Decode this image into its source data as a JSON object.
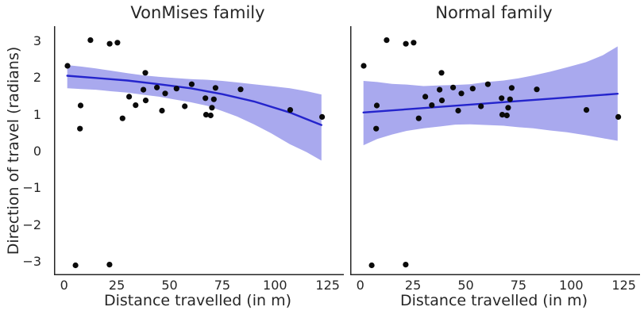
{
  "figure": {
    "background": "#ffffff",
    "text_color": "#262626",
    "spine_color": "#262626",
    "scatter_color": "#0a0a0a",
    "line_color": "#2424cc",
    "band_color": "#a9a9ee"
  },
  "chart_data": [
    {
      "type": "scatter",
      "title": "VonMises family",
      "xlabel": "Distance travelled (in m)",
      "ylabel": "Direction of travel (radians)",
      "xlim": [
        -4.8,
        131.5
      ],
      "ylim": [
        -3.37,
        3.41
      ],
      "xticks": [
        0,
        25,
        50,
        75,
        100,
        125
      ],
      "yticks": [
        3,
        2,
        1,
        0,
        -1,
        -2,
        -3
      ],
      "grid": false,
      "legend": "none",
      "points": [
        [
          1.6,
          2.33
        ],
        [
          5.4,
          -3.1
        ],
        [
          7.5,
          0.62
        ],
        [
          7.8,
          1.25
        ],
        [
          12.5,
          3.03
        ],
        [
          21.5,
          -3.08
        ],
        [
          21.6,
          2.93
        ],
        [
          25.3,
          2.96
        ],
        [
          27.7,
          0.9
        ],
        [
          30.8,
          1.49
        ],
        [
          33.9,
          1.26
        ],
        [
          37.6,
          1.68
        ],
        [
          38.5,
          2.14
        ],
        [
          38.7,
          1.39
        ],
        [
          44.0,
          1.74
        ],
        [
          46.4,
          1.11
        ],
        [
          47.9,
          1.58
        ],
        [
          53.3,
          1.71
        ],
        [
          57.2,
          1.23
        ],
        [
          60.5,
          1.83
        ],
        [
          67.0,
          1.45
        ],
        [
          67.3,
          1.0
        ],
        [
          69.5,
          0.98
        ],
        [
          70.1,
          1.19
        ],
        [
          71.0,
          1.42
        ],
        [
          71.8,
          1.73
        ],
        [
          83.7,
          1.69
        ],
        [
          107.2,
          1.13
        ],
        [
          122.3,
          0.94
        ]
      ],
      "regression_line": {
        "x": [
          1.5,
          15,
          30,
          45,
          60,
          75,
          90,
          107,
          122
        ],
        "y": [
          2.06,
          2.0,
          1.93,
          1.83,
          1.72,
          1.56,
          1.36,
          1.06,
          0.72
        ]
      },
      "confidence_band": {
        "x": [
          1.5,
          8,
          15,
          22,
          30,
          38,
          45,
          52,
          60,
          68,
          75,
          82,
          90,
          98,
          107,
          115,
          122
        ],
        "top": [
          2.35,
          2.31,
          2.26,
          2.2,
          2.13,
          2.07,
          2.03,
          2.0,
          1.97,
          1.95,
          1.92,
          1.88,
          1.83,
          1.78,
          1.72,
          1.64,
          1.55
        ],
        "bottom": [
          1.72,
          1.7,
          1.68,
          1.64,
          1.6,
          1.54,
          1.49,
          1.42,
          1.34,
          1.24,
          1.1,
          0.95,
          0.74,
          0.5,
          0.2,
          -0.02,
          -0.25
        ]
      }
    },
    {
      "type": "scatter",
      "title": "Normal family",
      "xlabel": "Distance travelled (in m)",
      "ylabel": "Direction of travel (radians)",
      "xlim": [
        -4.8,
        131.5
      ],
      "ylim": [
        -3.37,
        3.41
      ],
      "xticks": [
        0,
        25,
        50,
        75,
        100,
        125
      ],
      "yticks": [],
      "grid": false,
      "legend": "none",
      "points": [
        [
          1.6,
          2.33
        ],
        [
          5.4,
          -3.1
        ],
        [
          7.5,
          0.62
        ],
        [
          7.8,
          1.25
        ],
        [
          12.5,
          3.03
        ],
        [
          21.5,
          -3.08
        ],
        [
          21.6,
          2.93
        ],
        [
          25.3,
          2.96
        ],
        [
          27.7,
          0.9
        ],
        [
          30.8,
          1.49
        ],
        [
          33.9,
          1.26
        ],
        [
          37.6,
          1.68
        ],
        [
          38.5,
          2.14
        ],
        [
          38.7,
          1.39
        ],
        [
          44.0,
          1.74
        ],
        [
          46.4,
          1.11
        ],
        [
          47.9,
          1.58
        ],
        [
          53.3,
          1.71
        ],
        [
          57.2,
          1.23
        ],
        [
          60.5,
          1.83
        ],
        [
          67.0,
          1.45
        ],
        [
          67.3,
          1.0
        ],
        [
          69.5,
          0.98
        ],
        [
          70.1,
          1.19
        ],
        [
          71.0,
          1.42
        ],
        [
          71.8,
          1.73
        ],
        [
          83.7,
          1.69
        ],
        [
          107.2,
          1.13
        ],
        [
          122.3,
          0.94
        ]
      ],
      "regression_line": {
        "x": [
          1.5,
          122
        ],
        "y": [
          1.06,
          1.57
        ]
      },
      "confidence_band": {
        "x": [
          1.5,
          8,
          15,
          22,
          30,
          38,
          45,
          52,
          60,
          68,
          75,
          82,
          90,
          98,
          107,
          115,
          122
        ],
        "top": [
          1.92,
          1.89,
          1.84,
          1.82,
          1.78,
          1.8,
          1.81,
          1.83,
          1.89,
          1.93,
          1.99,
          2.07,
          2.17,
          2.29,
          2.43,
          2.62,
          2.86
        ],
        "bottom": [
          0.17,
          0.34,
          0.46,
          0.56,
          0.63,
          0.68,
          0.73,
          0.74,
          0.72,
          0.7,
          0.66,
          0.63,
          0.57,
          0.52,
          0.44,
          0.36,
          0.29
        ]
      }
    }
  ]
}
